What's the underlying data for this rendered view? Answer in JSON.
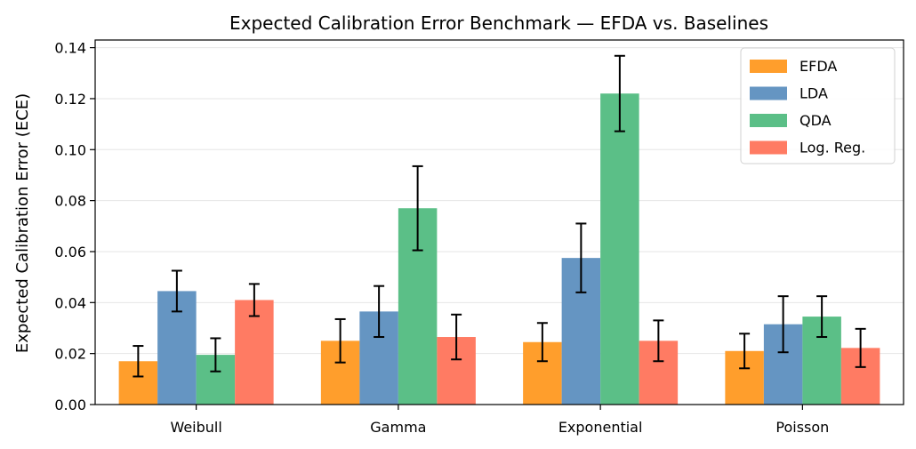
{
  "chart_data": {
    "type": "bar",
    "title": "Expected Calibration Error Benchmark — EFDA vs. Baselines",
    "xlabel": "",
    "ylabel": "Expected Calibration Error (ECE)",
    "ylim": [
      0,
      0.143
    ],
    "yticks": [
      "0.00",
      "0.02",
      "0.04",
      "0.06",
      "0.08",
      "0.10",
      "0.12",
      "0.14"
    ],
    "grid": "horizontal",
    "legend_position": "top-right",
    "categories": [
      "Weibull",
      "Gamma",
      "Exponential",
      "Poisson"
    ],
    "series": [
      {
        "name": "EFDA",
        "color": "#ff9e2c",
        "values": [
          0.017,
          0.025,
          0.0245,
          0.021
        ],
        "errors": [
          0.006,
          0.0085,
          0.0075,
          0.0068
        ]
      },
      {
        "name": "LDA",
        "color": "#6595c2",
        "values": [
          0.0445,
          0.0365,
          0.0575,
          0.0315
        ],
        "errors": [
          0.008,
          0.01,
          0.0135,
          0.011
        ]
      },
      {
        "name": "QDA",
        "color": "#5bbf87",
        "values": [
          0.0195,
          0.077,
          0.122,
          0.0345
        ],
        "errors": [
          0.0065,
          0.0165,
          0.0148,
          0.008
        ]
      },
      {
        "name": "Log. Reg.",
        "color": "#ff7b63",
        "values": [
          0.041,
          0.0265,
          0.025,
          0.0222
        ],
        "errors": [
          0.0063,
          0.0088,
          0.008,
          0.0075
        ]
      }
    ]
  }
}
